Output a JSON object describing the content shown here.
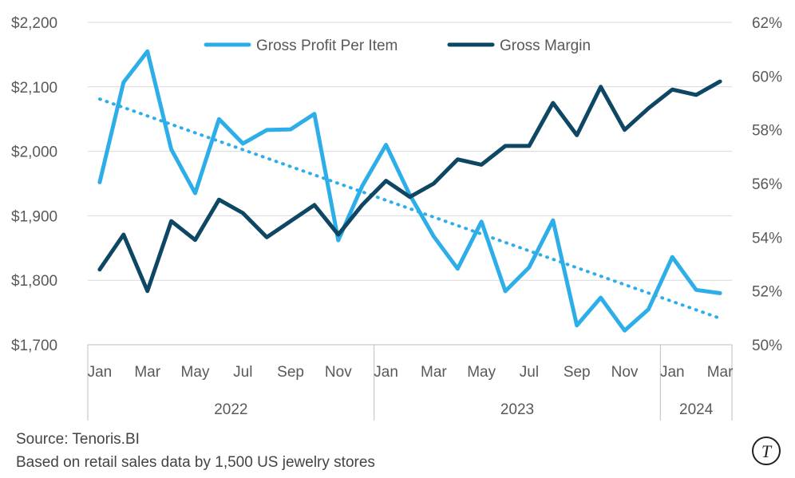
{
  "chart_data": {
    "type": "line",
    "x": [
      "2022-01",
      "2022-02",
      "2022-03",
      "2022-04",
      "2022-05",
      "2022-06",
      "2022-07",
      "2022-08",
      "2022-09",
      "2022-10",
      "2022-11",
      "2022-12",
      "2023-01",
      "2023-02",
      "2023-03",
      "2023-04",
      "2023-05",
      "2023-06",
      "2023-07",
      "2023-08",
      "2023-09",
      "2023-10",
      "2023-11",
      "2023-12",
      "2024-01",
      "2024-02",
      "2024-03"
    ],
    "month_ticks": [
      "Jan",
      "Mar",
      "May",
      "Jul",
      "Sep",
      "Nov",
      "Jan",
      "Mar",
      "May",
      "Jul",
      "Sep",
      "Nov",
      "Jan",
      "Mar"
    ],
    "year_labels": [
      "2022",
      "2023",
      "2024"
    ],
    "series": [
      {
        "name": "Gross Profit Per Item",
        "axis": "left",
        "color": "#2eaee8",
        "values": [
          1952,
          2107,
          2155,
          2003,
          1935,
          2050,
          2012,
          2033,
          2034,
          2058,
          1862,
          1946,
          2010,
          1932,
          1868,
          1818,
          1891,
          1783,
          1820,
          1893,
          1730,
          1773,
          1722,
          1755,
          1836,
          1785,
          1780
        ]
      },
      {
        "name": "Gross Margin",
        "axis": "right",
        "color": "#0e4763",
        "values": [
          52.8,
          54.1,
          52.0,
          54.6,
          53.9,
          55.4,
          54.9,
          54.0,
          54.6,
          55.2,
          54.1,
          55.2,
          56.1,
          55.5,
          56.0,
          56.9,
          56.7,
          57.4,
          57.4,
          59.0,
          57.8,
          59.6,
          58.0,
          58.8,
          59.5,
          59.3,
          59.8
        ]
      }
    ],
    "trendline": {
      "series": "Gross Profit Per Item",
      "style": "dotted",
      "start": 2081,
      "end": 1741
    },
    "y_left": {
      "ticks": [
        "$1,700",
        "$1,800",
        "$1,900",
        "$2,000",
        "$2,100",
        "$2,200"
      ],
      "min": 1700,
      "max": 2200
    },
    "y_right": {
      "ticks": [
        "50%",
        "52%",
        "54%",
        "56%",
        "58%",
        "60%",
        "62%"
      ],
      "min": 50,
      "max": 62
    },
    "grid": true,
    "legend_position": "top-center"
  },
  "footer": {
    "source": "Source: Tenoris.BI",
    "note": "Based on retail sales data by 1,500 US jewelry stores"
  },
  "logo": {
    "letter": "T"
  }
}
